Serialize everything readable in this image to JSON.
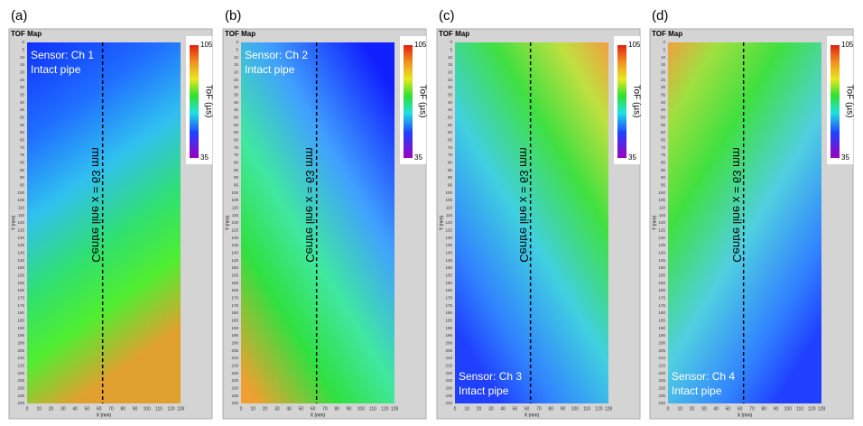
{
  "axes": {
    "map_title": "TOF Map",
    "x_label": "X (mm)",
    "y_label": "Y (mm)",
    "colorbar_label": "ToF (µs)",
    "colorbar_max": "105",
    "colorbar_min": "35",
    "centre_line": "Centre line x = 63 mm",
    "x_ticks": [
      0,
      10,
      20,
      30,
      40,
      50,
      60,
      70,
      80,
      90,
      100,
      110,
      120,
      128
    ],
    "y_ticks": [
      0,
      5,
      10,
      15,
      20,
      25,
      30,
      35,
      40,
      45,
      50,
      55,
      60,
      65,
      70,
      75,
      80,
      85,
      90,
      95,
      100,
      105,
      110,
      115,
      120,
      125,
      130,
      135,
      140,
      145,
      150,
      155,
      160,
      165,
      170,
      175,
      180,
      185,
      190,
      195,
      200,
      205,
      210,
      215,
      220,
      225,
      230,
      235,
      240
    ]
  },
  "panels": [
    {
      "label": "(a)",
      "sensor": "Sensor: Ch 1",
      "condition": "Intact pipe"
    },
    {
      "label": "(b)",
      "sensor": "Sensor: Ch 2",
      "condition": "Intact pipe"
    },
    {
      "label": "(c)",
      "sensor": "Sensor: Ch 3",
      "condition": "Intact pipe"
    },
    {
      "label": "(d)",
      "sensor": "Sensor: Ch 4",
      "condition": "Intact pipe"
    }
  ]
}
